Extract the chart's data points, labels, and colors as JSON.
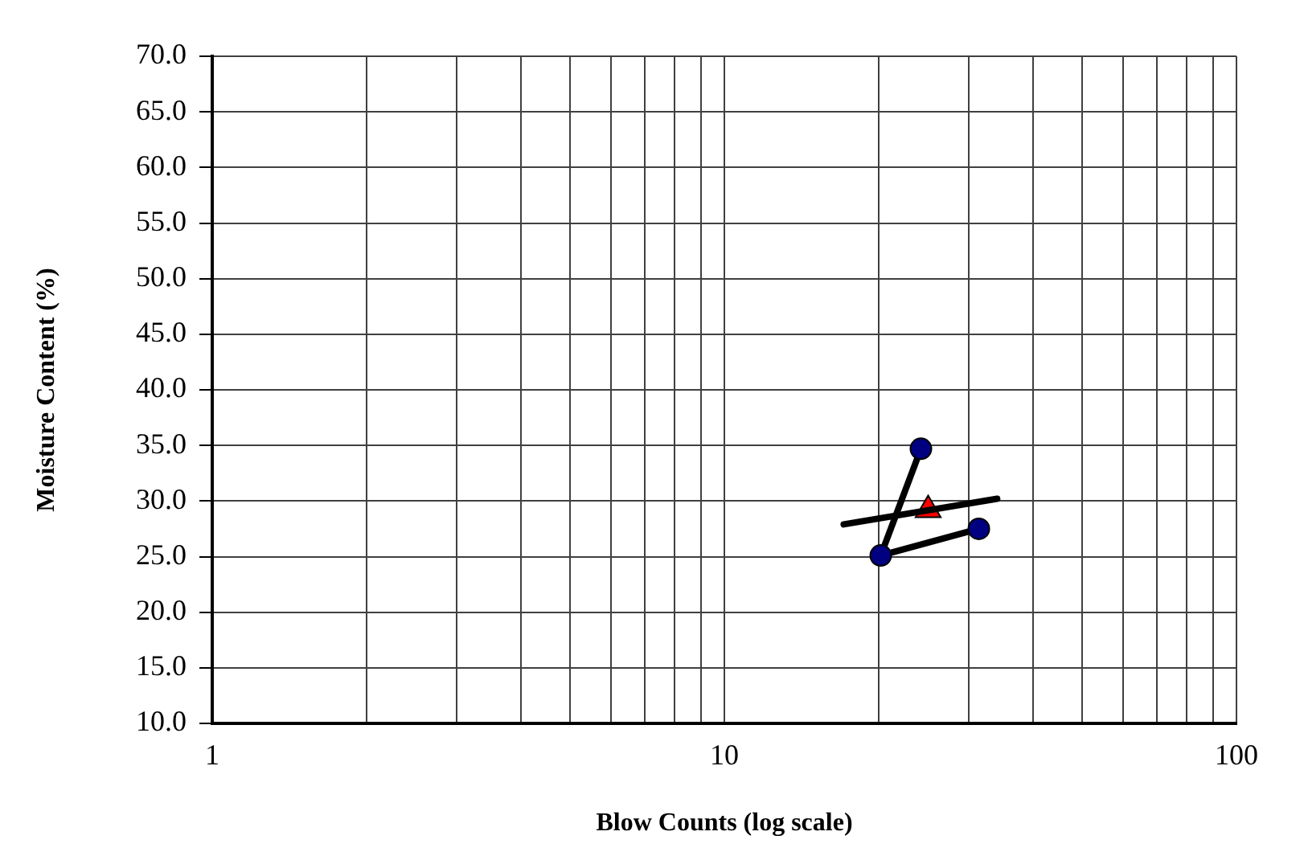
{
  "chart_data": {
    "type": "scatter",
    "xlabel": "Blow Counts (log scale)",
    "ylabel": "Moisture Content (%)",
    "log": "x",
    "grid": true,
    "xlim": [
      1,
      100
    ],
    "xticks": [
      1,
      {
        "value": 2,
        "label": null
      },
      {
        "value": 3,
        "label": null
      },
      {
        "value": 4,
        "label": null
      },
      {
        "value": 5,
        "label": null
      },
      {
        "value": 6,
        "label": null
      },
      {
        "value": 7,
        "label": null
      },
      {
        "value": 8,
        "label": null
      },
      {
        "value": 9,
        "label": null
      },
      10,
      {
        "value": 20,
        "label": null
      },
      {
        "value": 30,
        "label": null
      },
      {
        "value": 40,
        "label": null
      },
      {
        "value": 50,
        "label": null
      },
      {
        "value": 60,
        "label": null
      },
      {
        "value": 70,
        "label": null
      },
      {
        "value": 80,
        "label": null
      },
      {
        "value": 90,
        "label": null
      },
      100
    ],
    "ylim": [
      10,
      70
    ],
    "yticks": [
      {
        "value": 10,
        "label": "10.0"
      },
      {
        "value": 15,
        "label": "15.0"
      },
      {
        "value": 20,
        "label": "20.0"
      },
      {
        "value": 25,
        "label": "25.0"
      },
      {
        "value": 30,
        "label": "30.0"
      },
      {
        "value": 35,
        "label": "35.0"
      },
      {
        "value": 40,
        "label": "40.0"
      },
      {
        "value": 45,
        "label": "45.0"
      },
      {
        "value": 50,
        "label": "50.0"
      },
      {
        "value": 55,
        "label": "55.0"
      },
      {
        "value": 60,
        "label": "60.0"
      },
      {
        "value": 65,
        "label": "65.0"
      },
      {
        "value": 70,
        "label": "70.0"
      }
    ],
    "series": [
      {
        "type": "line",
        "x": [
          17.1,
          34.1
        ],
        "values": [
          27.9,
          30.2
        ],
        "color": "#000000",
        "marker": "none"
      },
      {
        "type": "line",
        "x": [
          24.2,
          20.2,
          31.4
        ],
        "values": [
          34.7,
          25.1,
          27.5
        ],
        "color": "#000000",
        "colors": [
          "#000080",
          "#000080",
          "#000080"
        ],
        "marker": "circle"
      },
      {
        "type": "scatter",
        "x": [
          25
        ],
        "values": [
          29.2
        ],
        "color": "#ff0000",
        "marker": "triangle"
      }
    ]
  }
}
